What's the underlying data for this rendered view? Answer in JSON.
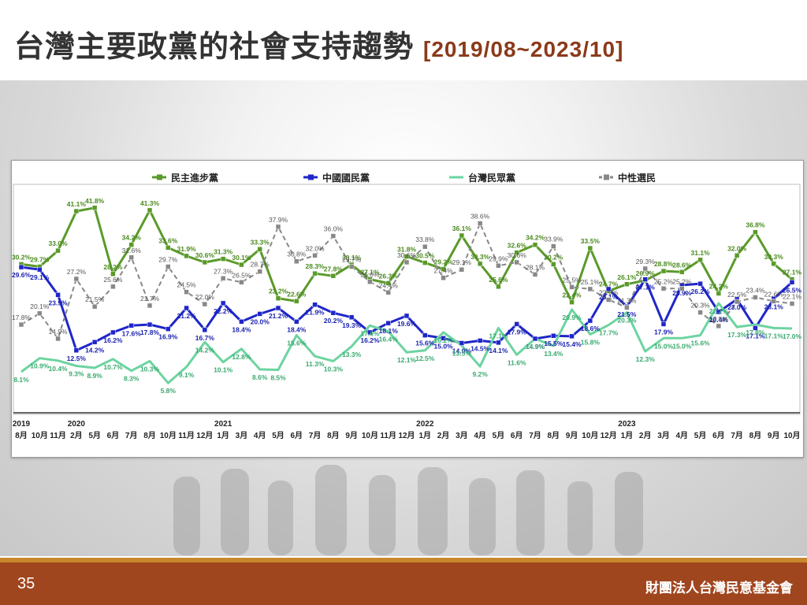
{
  "header": {
    "title": "台灣主要政黨的社會支持趨勢",
    "range": "[2019/08~2023/10]"
  },
  "footer": {
    "page_number": "35",
    "organization": "財團法人台灣民意基金會"
  },
  "chart_data": {
    "type": "line",
    "ylim": [
      0,
      45
    ],
    "grid": false,
    "legend_position": "top",
    "x": [
      "8月",
      "10月",
      "11月",
      "2月",
      "5月",
      "6月",
      "7月",
      "8月",
      "10月",
      "11月",
      "12月",
      "1月",
      "3月",
      "4月",
      "5月",
      "6月",
      "7月",
      "8月",
      "9月",
      "10月",
      "11月",
      "12月",
      "1月",
      "2月",
      "3月",
      "4月",
      "5月",
      "6月",
      "7月",
      "8月",
      "9月",
      "10月",
      "12月",
      "1月",
      "2月",
      "3月",
      "4月",
      "5月",
      "6月",
      "7月",
      "8月",
      "9月",
      "10月"
    ],
    "year_labels": [
      {
        "label": "2019",
        "index": 0
      },
      {
        "label": "2020",
        "index": 3
      },
      {
        "label": "2021",
        "index": 11
      },
      {
        "label": "2022",
        "index": 22
      },
      {
        "label": "2023",
        "index": 33
      }
    ],
    "series": [
      {
        "name": "民主進步黨",
        "color": "#5a9a2a",
        "style": "solid",
        "marker": "square",
        "values": [
          30.2,
          29.7,
          33.0,
          41.1,
          41.8,
          28.2,
          34.2,
          41.3,
          33.6,
          31.9,
          30.6,
          31.3,
          30.1,
          33.3,
          23.2,
          22.6,
          28.3,
          27.8,
          30.1,
          27.1,
          26.3,
          31.8,
          30.5,
          29.2,
          36.1,
          30.3,
          25.6,
          32.6,
          34.2,
          30.2,
          22.4,
          33.5,
          24.7,
          26.1,
          26.9,
          28.8,
          28.6,
          31.1,
          24.2,
          32.0,
          36.8,
          30.3,
          27.1
        ]
      },
      {
        "name": "中國國民黨",
        "color": "#1f26c8",
        "style": "solid",
        "marker": "square",
        "values": [
          29.6,
          29.1,
          23.9,
          12.5,
          14.2,
          16.2,
          17.6,
          17.8,
          16.9,
          21.2,
          16.7,
          22.2,
          18.4,
          20.0,
          21.2,
          18.4,
          21.9,
          20.2,
          19.3,
          16.2,
          18.1,
          19.6,
          15.6,
          15.0,
          14.0,
          14.5,
          14.1,
          17.9,
          14.9,
          15.5,
          15.4,
          18.6,
          25.1,
          21.5,
          27.1,
          17.9,
          25.9,
          26.2,
          20.4,
          23.0,
          17.1,
          23.1,
          26.5
        ]
      },
      {
        "name": "台灣民眾黨",
        "color": "#6cd4a0",
        "style": "solid",
        "marker": "none",
        "values": [
          8.1,
          10.9,
          10.4,
          9.3,
          8.9,
          10.7,
          8.3,
          10.3,
          5.8,
          9.1,
          14.2,
          10.1,
          12.8,
          8.6,
          8.5,
          15.6,
          11.3,
          10.3,
          13.3,
          17.6,
          16.4,
          12.1,
          12.5,
          16.2,
          13.5,
          9.2,
          17.1,
          11.6,
          14.9,
          13.4,
          20.9,
          15.8,
          17.7,
          20.3,
          12.3,
          15.0,
          15.0,
          15.6,
          22.2,
          17.3,
          17.8,
          17.1,
          17.0
        ]
      },
      {
        "name": "中性選民",
        "color": "#888888",
        "style": "dashed",
        "marker": "square",
        "values": [
          17.8,
          20.1,
          14.9,
          27.2,
          21.5,
          25.6,
          31.6,
          21.7,
          29.7,
          24.5,
          22.0,
          27.3,
          26.5,
          28.7,
          37.9,
          30.8,
          32.0,
          36.0,
          29.7,
          26.6,
          24.4,
          30.6,
          33.8,
          27.4,
          29.1,
          38.6,
          29.9,
          30.6,
          28.1,
          33.9,
          25.5,
          25.1,
          22.9,
          21.3,
          29.3,
          25.2,
          25.2,
          20.3,
          17.5,
          22.5,
          23.4,
          22.6,
          22.1
        ]
      }
    ]
  }
}
